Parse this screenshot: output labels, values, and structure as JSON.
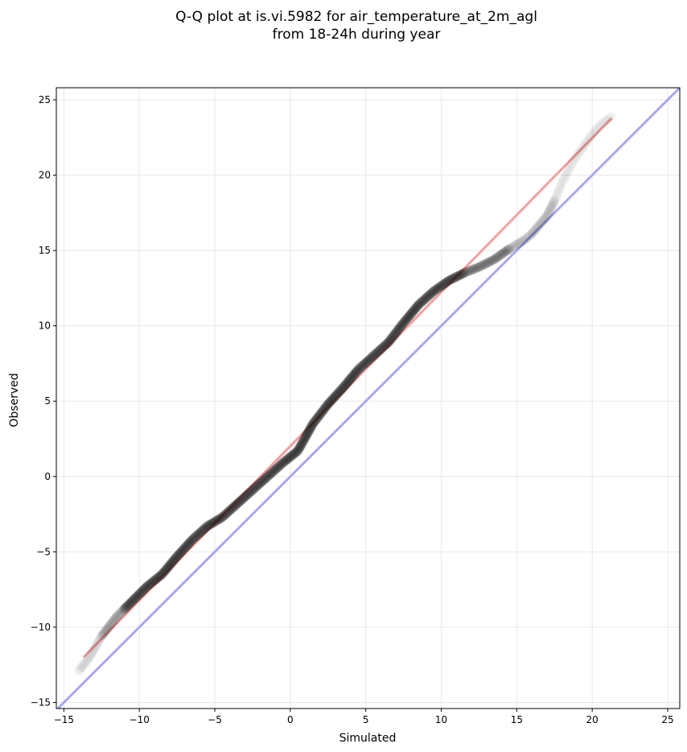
{
  "chart_data": {
    "type": "scatter",
    "title": [
      "Q-Q plot at is.vi.5982 for air_temperature_at_2m_agl",
      "from 18-24h during year"
    ],
    "xlabel": "Simulated",
    "ylabel": "Observed",
    "xlim": [
      -15.5,
      25.8
    ],
    "ylim": [
      -15.4,
      25.8
    ],
    "xticks": [
      -15,
      -10,
      -5,
      0,
      5,
      10,
      15,
      20,
      25
    ],
    "yticks": [
      -15,
      -10,
      -5,
      0,
      5,
      10,
      15,
      20,
      25
    ],
    "xtick_labels": [
      "−15",
      "−10",
      "−5",
      "0",
      "5",
      "10",
      "15",
      "20",
      "25"
    ],
    "ytick_labels": [
      "−15",
      "−10",
      "−5",
      "0",
      "5",
      "10",
      "15",
      "20",
      "25"
    ],
    "grid": true,
    "colors": {
      "points": "#000000",
      "fit_line": "#f5a0a0",
      "identity_line": "#a7a7f5",
      "grid": "#e8e8e8"
    },
    "quantile_curve": [
      [
        -14.0,
        -12.9
      ],
      [
        -13.3,
        -12.0
      ],
      [
        -12.5,
        -10.6
      ],
      [
        -11.5,
        -9.3
      ],
      [
        -10.5,
        -8.3
      ],
      [
        -9.5,
        -7.3
      ],
      [
        -8.5,
        -6.5
      ],
      [
        -7.5,
        -5.3
      ],
      [
        -6.5,
        -4.2
      ],
      [
        -5.5,
        -3.3
      ],
      [
        -4.5,
        -2.7
      ],
      [
        -3.5,
        -1.8
      ],
      [
        -2.5,
        -0.9
      ],
      [
        -1.5,
        0.0
      ],
      [
        -0.5,
        0.9
      ],
      [
        0.5,
        1.7
      ],
      [
        1.5,
        3.5
      ],
      [
        2.5,
        4.8
      ],
      [
        3.5,
        5.9
      ],
      [
        4.5,
        7.1
      ],
      [
        5.5,
        8.0
      ],
      [
        6.5,
        8.9
      ],
      [
        7.5,
        10.2
      ],
      [
        8.5,
        11.4
      ],
      [
        9.5,
        12.3
      ],
      [
        10.5,
        13.0
      ],
      [
        11.5,
        13.5
      ],
      [
        12.5,
        13.9
      ],
      [
        13.5,
        14.4
      ],
      [
        14.5,
        15.1
      ],
      [
        15.5,
        15.7
      ],
      [
        16.0,
        16.1
      ],
      [
        16.5,
        16.7
      ],
      [
        17.0,
        17.3
      ],
      [
        17.5,
        18.3
      ],
      [
        18.0,
        19.5
      ],
      [
        18.5,
        20.5
      ],
      [
        19.0,
        21.3
      ],
      [
        19.5,
        22.0
      ],
      [
        20.0,
        22.7
      ],
      [
        20.5,
        23.3
      ],
      [
        21.3,
        23.9
      ]
    ],
    "fit_line": {
      "x": [
        -13.7,
        21.3
      ],
      "y": [
        -12.0,
        23.8
      ]
    },
    "identity_line": {
      "x": [
        -15.5,
        25.8
      ],
      "y": [
        -15.5,
        25.8
      ]
    }
  }
}
